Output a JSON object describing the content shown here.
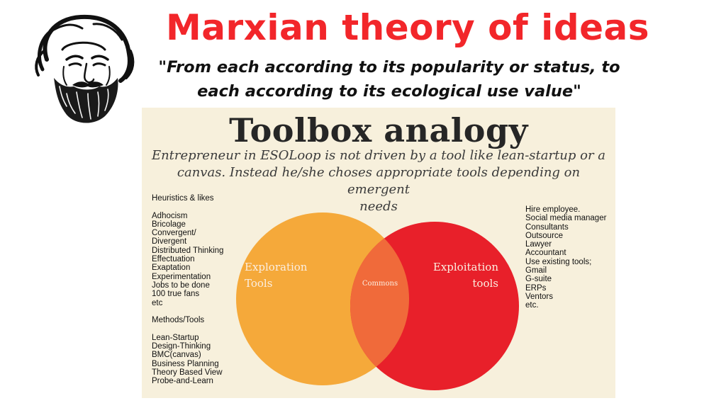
{
  "header": {
    "title": "Marxian theory of ideas",
    "title_color": "#f2262a",
    "quote_line1": "\"From each according to its popularity or status, to",
    "quote_line2": "each according to its ecological use value\"",
    "portrait_icon": "bearded-man-portrait"
  },
  "panel": {
    "title": "Toolbox analogy",
    "subtitle_line1": "Entrepreneur in ESOLoop is not driven by a tool like lean-startup or a",
    "subtitle_line2": "canvas. Instead he/she choses appropriate tools depending on emergent",
    "subtitle_line3": "needs",
    "background": "#f7f0dc"
  },
  "venn": {
    "left_label_line1": "Exploration",
    "left_label_line2": "Tools",
    "right_label_line1": "Exploitation",
    "right_label_line2": "tools",
    "overlap_label": "Commons",
    "left_color": "#f5a93a",
    "right_color": "#e8202a",
    "overlap_color": "#f06a3a"
  },
  "left_list": {
    "heuristics_heading": "Heuristics & likes",
    "heuristics": [
      "Adhocism",
      "Bricolage",
      "Convergent/",
      "Divergent",
      "Distributed Thinking",
      "Effectuation",
      "Exaptation",
      "Experimentation",
      "Jobs to be done",
      "100 true fans",
      "etc"
    ],
    "methods_heading": "Methods/Tools",
    "methods": [
      "Lean-Startup",
      "Design-Thinking",
      "BMC(canvas)",
      "Business Planning",
      "Theory Based View",
      "Probe-and-Learn"
    ]
  },
  "right_list": {
    "items": [
      "Hire employee.",
      "Social media manager",
      "Consultants",
      "Outsource",
      "Lawyer",
      "Accountant",
      "Use existing tools;",
      "Gmail",
      "G-suite",
      "ERPs",
      "Ventors",
      "etc."
    ]
  }
}
